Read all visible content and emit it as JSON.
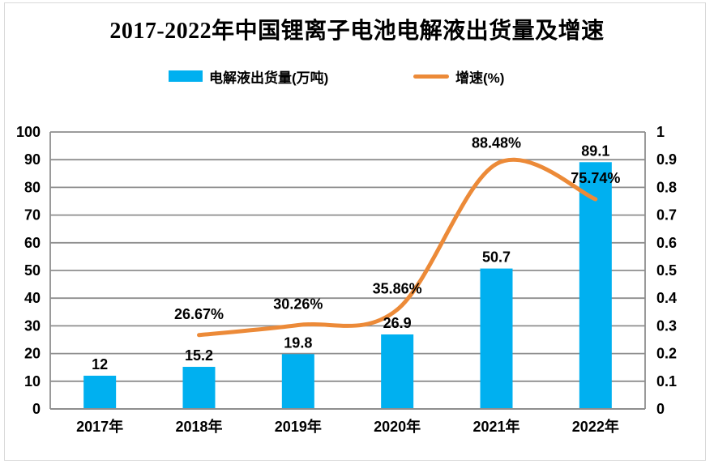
{
  "title": "2017-2022年中国锂离子电池电解液出货量及增速",
  "legend": {
    "items": [
      {
        "label": "电解液出货量(万吨)",
        "type": "bar"
      },
      {
        "label": "增速(%)",
        "type": "line"
      }
    ]
  },
  "colors": {
    "bar": "#00B0F0",
    "line": "#EC8A38",
    "grid": "#8E8E8E",
    "text": "#000000",
    "frame": "#D9D9D9"
  },
  "chart_data": {
    "type": "bar+line combo",
    "title": "2017-2022年中国锂离子电池电解液出货量及增速",
    "categories": [
      "2017年",
      "2018年",
      "2019年",
      "2020年",
      "2021年",
      "2022年"
    ],
    "series": [
      {
        "name": "电解液出货量(万吨)",
        "type": "bar",
        "axis": "left",
        "values": [
          12,
          15.2,
          19.8,
          26.9,
          50.7,
          89.1
        ],
        "labels": [
          "12",
          "15.2",
          "19.8",
          "26.9",
          "50.7",
          "89.1"
        ]
      },
      {
        "name": "增速(%)",
        "type": "line",
        "axis": "right",
        "smooth": true,
        "values": [
          null,
          0.2667,
          0.3026,
          0.3586,
          0.8848,
          0.7574
        ],
        "labels": [
          null,
          "26.67%",
          "30.26%",
          "35.86%",
          "88.48%",
          "75.74%"
        ]
      }
    ],
    "left_axis": {
      "min": 0,
      "max": 100,
      "step": 10,
      "ticks": [
        "0",
        "10",
        "20",
        "30",
        "40",
        "50",
        "60",
        "70",
        "80",
        "90",
        "100"
      ]
    },
    "right_axis": {
      "min": 0,
      "max": 1,
      "step": 0.1,
      "ticks": [
        "0",
        "0.1",
        "0.2",
        "0.3",
        "0.4",
        "0.5",
        "0.6",
        "0.7",
        "0.8",
        "0.9",
        "1"
      ]
    },
    "grid": true,
    "legend_position": "top"
  }
}
